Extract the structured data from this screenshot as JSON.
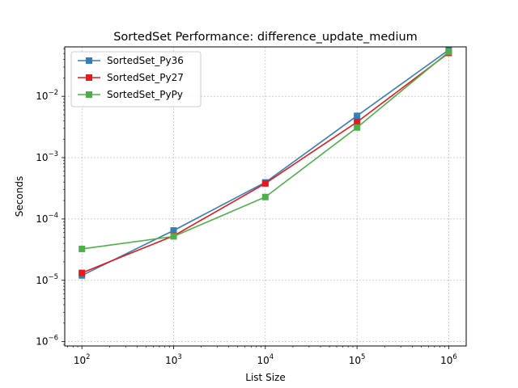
{
  "chart_data": {
    "type": "line",
    "title": "SortedSet Performance: difference_update_medium",
    "xlabel": "List Size",
    "ylabel": "Seconds",
    "xscale": "log",
    "yscale": "log",
    "x": [
      100,
      1000,
      10000,
      100000,
      1000000
    ],
    "x_tick_labels": [
      {
        "base": "10",
        "exp": "2"
      },
      {
        "base": "10",
        "exp": "3"
      },
      {
        "base": "10",
        "exp": "4"
      },
      {
        "base": "10",
        "exp": "5"
      },
      {
        "base": "10",
        "exp": "6"
      }
    ],
    "y_tick_labels": [
      {
        "base": "10",
        "exp": "−6"
      },
      {
        "base": "10",
        "exp": "−5"
      },
      {
        "base": "10",
        "exp": "−4"
      },
      {
        "base": "10",
        "exp": "−3"
      },
      {
        "base": "10",
        "exp": "−2"
      }
    ],
    "xlim": [
      65,
      1550000
    ],
    "ylim": [
      8.5e-07,
      0.064
    ],
    "grid": true,
    "legend_position": "top-left",
    "series": [
      {
        "name": "SortedSet_Py36",
        "color": "#377eb8",
        "values": [
          1.2e-05,
          6.5e-05,
          0.000395,
          0.0048,
          0.057
        ]
      },
      {
        "name": "SortedSet_Py27",
        "color": "#e41a1c",
        "values": [
          1.32e-05,
          5.3e-05,
          0.00038,
          0.0038,
          0.051
        ]
      },
      {
        "name": "SortedSet_PyPy",
        "color": "#4daf4a",
        "values": [
          3.25e-05,
          5.2e-05,
          0.000228,
          0.0031,
          0.053
        ]
      }
    ]
  }
}
